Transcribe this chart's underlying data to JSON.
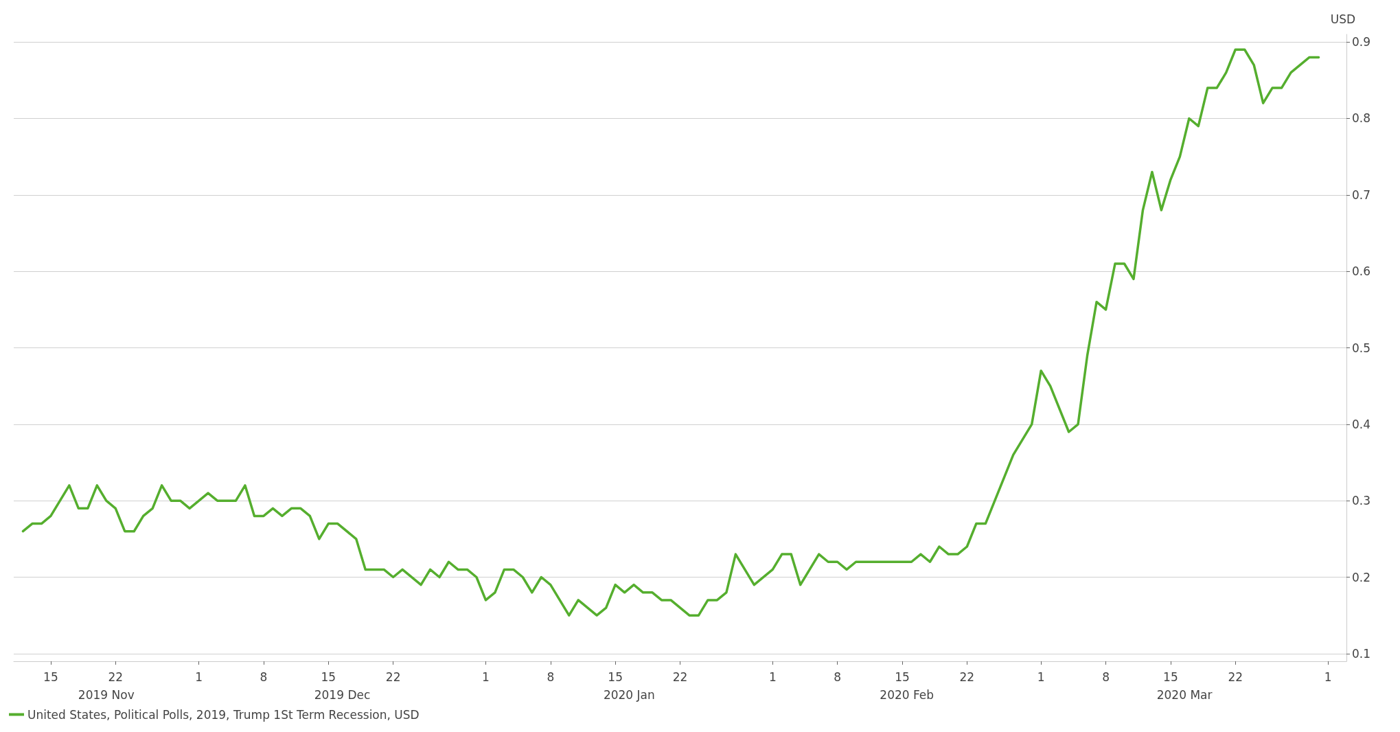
{
  "chart_data": {
    "type": "line",
    "ylabel": "USD",
    "grid": "y",
    "legend": "bottom left",
    "marker": "none",
    "line_style": "solid",
    "xlim": [
      "2019-11-11",
      "2020-04-03"
    ],
    "ylim": [
      0.09,
      0.91
    ],
    "xticks": [
      {
        "value": "2019-11-15",
        "label": "15"
      },
      {
        "value": "2019-11-22",
        "label": "22"
      },
      {
        "value": "2019-12-01",
        "label": "1"
      },
      {
        "value": "2019-12-08",
        "label": "8"
      },
      {
        "value": "2019-12-15",
        "label": "15"
      },
      {
        "value": "2019-12-22",
        "label": "22"
      },
      {
        "value": "2020-01-01",
        "label": "1"
      },
      {
        "value": "2020-01-08",
        "label": "8"
      },
      {
        "value": "2020-01-15",
        "label": "15"
      },
      {
        "value": "2020-01-22",
        "label": "22"
      },
      {
        "value": "2020-02-01",
        "label": "1"
      },
      {
        "value": "2020-02-08",
        "label": "8"
      },
      {
        "value": "2020-02-15",
        "label": "15"
      },
      {
        "value": "2020-02-22",
        "label": "22"
      },
      {
        "value": "2020-03-01",
        "label": "1"
      },
      {
        "value": "2020-03-08",
        "label": "8"
      },
      {
        "value": "2020-03-15",
        "label": "15"
      },
      {
        "value": "2020-03-22",
        "label": "22"
      },
      {
        "value": "2020-04-01",
        "label": "1"
      }
    ],
    "yticks": [
      0.1,
      0.2,
      0.3,
      0.4,
      0.5,
      0.6,
      0.7,
      0.8,
      0.9
    ],
    "annotations": [
      "2019 Nov",
      "2019 Dec",
      "2020 Jan",
      "2020 Feb",
      "2020 Mar"
    ],
    "x": [
      "2019-11-12",
      "2019-11-13",
      "2019-11-14",
      "2019-11-15",
      "2019-11-17",
      "2019-11-18",
      "2019-11-19",
      "2019-11-20",
      "2019-11-21",
      "2019-11-22",
      "2019-11-23",
      "2019-11-24",
      "2019-11-25",
      "2019-11-26",
      "2019-11-27",
      "2019-11-28",
      "2019-11-29",
      "2019-11-30",
      "2019-12-02",
      "2019-12-03",
      "2019-12-05",
      "2019-12-06",
      "2019-12-07",
      "2019-12-08",
      "2019-12-09",
      "2019-12-10",
      "2019-12-11",
      "2019-12-12",
      "2019-12-13",
      "2019-12-14",
      "2019-12-15",
      "2019-12-16",
      "2019-12-18",
      "2019-12-19",
      "2019-12-21",
      "2019-12-22",
      "2019-12-23",
      "2019-12-25",
      "2019-12-26",
      "2019-12-27",
      "2019-12-28",
      "2019-12-29",
      "2019-12-30",
      "2019-12-31",
      "2020-01-01",
      "2020-01-02",
      "2020-01-03",
      "2020-01-04",
      "2020-01-05",
      "2020-01-06",
      "2020-01-07",
      "2020-01-08",
      "2020-01-10",
      "2020-01-11",
      "2020-01-13",
      "2020-01-14",
      "2020-01-15",
      "2020-01-16",
      "2020-01-17",
      "2020-01-18",
      "2020-01-19",
      "2020-01-20",
      "2020-01-21",
      "2020-01-23",
      "2020-01-24",
      "2020-01-25",
      "2020-01-26",
      "2020-01-27",
      "2020-01-28",
      "2020-01-30",
      "2020-02-01",
      "2020-02-02",
      "2020-02-03",
      "2020-02-04",
      "2020-02-06",
      "2020-02-07",
      "2020-02-08",
      "2020-02-09",
      "2020-02-10",
      "2020-02-16",
      "2020-02-17",
      "2020-02-18",
      "2020-02-19",
      "2020-02-20",
      "2020-02-21",
      "2020-02-22",
      "2020-02-23",
      "2020-02-24",
      "2020-02-27",
      "2020-02-29",
      "2020-03-01",
      "2020-03-02",
      "2020-03-04",
      "2020-03-05",
      "2020-03-06",
      "2020-03-07",
      "2020-03-08",
      "2020-03-09",
      "2020-03-10",
      "2020-03-11",
      "2020-03-12",
      "2020-03-13",
      "2020-03-14",
      "2020-03-15",
      "2020-03-16",
      "2020-03-17",
      "2020-03-18",
      "2020-03-19",
      "2020-03-20",
      "2020-03-21",
      "2020-03-22",
      "2020-03-23",
      "2020-03-24",
      "2020-03-25",
      "2020-03-26",
      "2020-03-27",
      "2020-03-28",
      "2020-03-30",
      "2020-03-31"
    ],
    "series": [
      {
        "name": "United States, Political Polls, 2019, Trump 1St Term Recession, USD",
        "color": "#55ae2e",
        "values": [
          0.26,
          0.27,
          0.27,
          0.28,
          0.32,
          0.29,
          0.29,
          0.32,
          0.3,
          0.29,
          0.26,
          0.26,
          0.28,
          0.29,
          0.32,
          0.3,
          0.3,
          0.29,
          0.31,
          0.3,
          0.3,
          0.32,
          0.28,
          0.28,
          0.29,
          0.28,
          0.29,
          0.29,
          0.28,
          0.25,
          0.27,
          0.27,
          0.25,
          0.21,
          0.21,
          0.2,
          0.21,
          0.19,
          0.21,
          0.2,
          0.22,
          0.21,
          0.21,
          0.2,
          0.17,
          0.18,
          0.21,
          0.21,
          0.2,
          0.18,
          0.2,
          0.19,
          0.15,
          0.17,
          0.15,
          0.16,
          0.19,
          0.18,
          0.19,
          0.18,
          0.18,
          0.17,
          0.17,
          0.15,
          0.15,
          0.17,
          0.17,
          0.18,
          0.23,
          0.19,
          0.21,
          0.23,
          0.23,
          0.19,
          0.23,
          0.22,
          0.22,
          0.21,
          0.22,
          0.22,
          0.23,
          0.22,
          0.24,
          0.23,
          0.23,
          0.24,
          0.27,
          0.27,
          0.36,
          0.4,
          0.47,
          0.45,
          0.39,
          0.4,
          0.49,
          0.56,
          0.55,
          0.61,
          0.61,
          0.59,
          0.68,
          0.73,
          0.68,
          0.72,
          0.75,
          0.8,
          0.79,
          0.84,
          0.84,
          0.86,
          0.89,
          0.89,
          0.87,
          0.82,
          0.84,
          0.84,
          0.86,
          0.88,
          0.88
        ]
      }
    ]
  }
}
